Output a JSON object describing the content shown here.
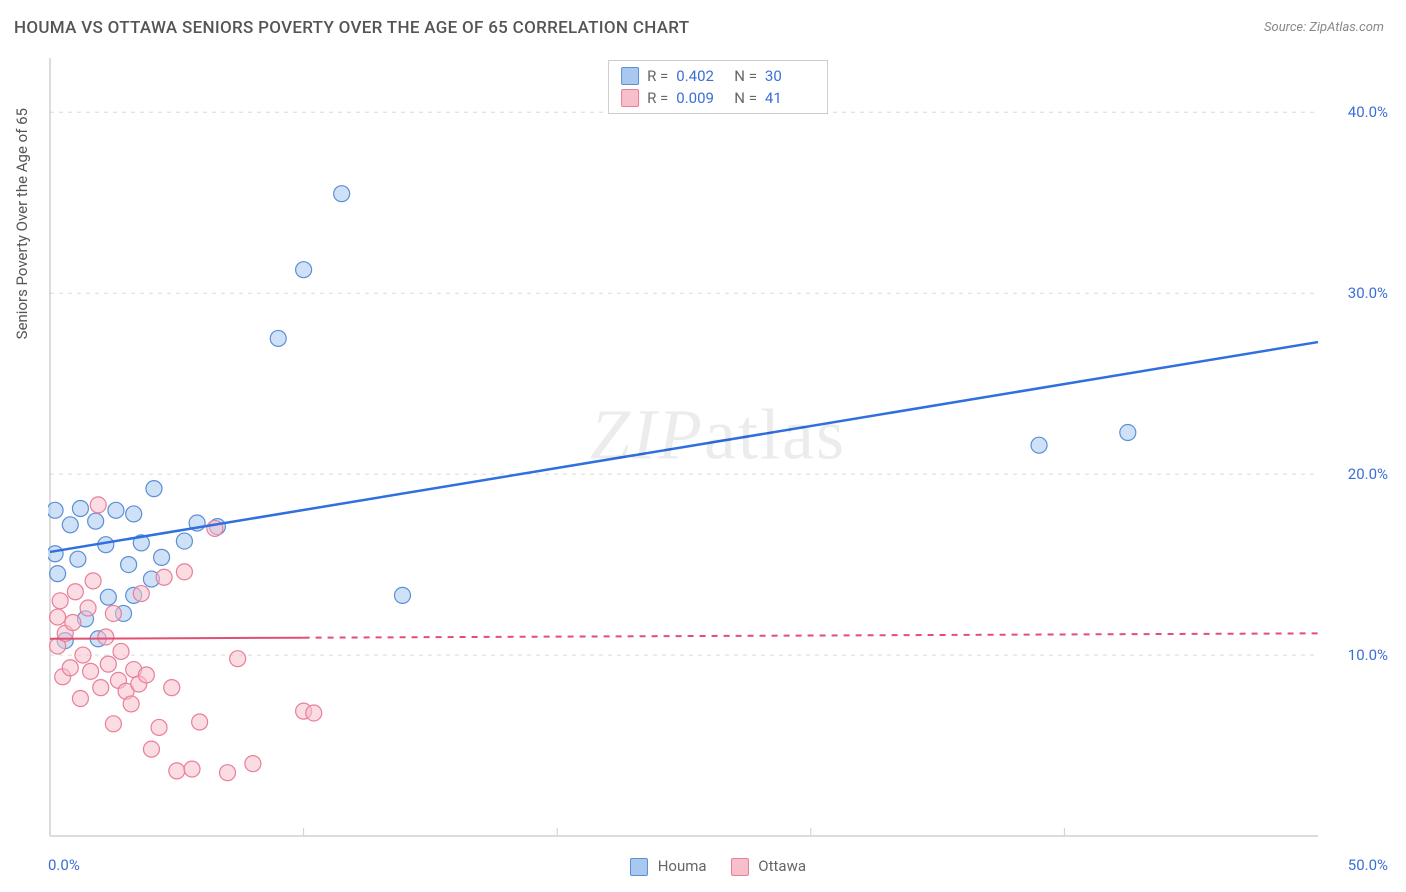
{
  "title": "HOUMA VS OTTAWA SENIORS POVERTY OVER THE AGE OF 65 CORRELATION CHART",
  "source": "Source: ZipAtlas.com",
  "ylabel": "Seniors Poverty Over the Age of 65",
  "watermark": "ZIPatlas",
  "chart": {
    "type": "scatter",
    "xlim": [
      0,
      50
    ],
    "ylim": [
      0,
      43
    ],
    "yticks": [
      10,
      20,
      30,
      40
    ],
    "ytick_labels": [
      "10.0%",
      "20.0%",
      "30.0%",
      "40.0%"
    ],
    "xticks_minor": [
      10,
      20,
      30,
      40
    ],
    "xtick_left": "0.0%",
    "xtick_right": "50.0%",
    "background_color": "#ffffff",
    "grid_color": "#dadada",
    "grid_style": "dashed",
    "axis_color": "#d0d0d0",
    "marker_radius": 8,
    "marker_stroke_width": 1.2,
    "marker_opacity": 0.55,
    "series": [
      {
        "name": "Houma",
        "color_fill": "#a8c8f0",
        "color_stroke": "#5b8fd6",
        "line_color": "#2f6fe0",
        "line_width": 2.5,
        "line_style": "solid",
        "R": "0.402",
        "N": "30",
        "trend": {
          "x1": 0,
          "y1": 15.7,
          "x2": 50,
          "y2": 27.3
        },
        "points": [
          [
            0.2,
            15.6
          ],
          [
            0.2,
            18.0
          ],
          [
            0.3,
            14.5
          ],
          [
            0.6,
            10.8
          ],
          [
            0.8,
            17.2
          ],
          [
            1.1,
            15.3
          ],
          [
            1.2,
            18.1
          ],
          [
            1.4,
            12.0
          ],
          [
            1.8,
            17.4
          ],
          [
            1.9,
            10.9
          ],
          [
            2.2,
            16.1
          ],
          [
            2.3,
            13.2
          ],
          [
            2.6,
            18.0
          ],
          [
            2.9,
            12.3
          ],
          [
            3.1,
            15.0
          ],
          [
            3.3,
            13.3
          ],
          [
            3.3,
            17.8
          ],
          [
            3.6,
            16.2
          ],
          [
            4.0,
            14.2
          ],
          [
            4.1,
            19.2
          ],
          [
            4.4,
            15.4
          ],
          [
            5.3,
            16.3
          ],
          [
            5.8,
            17.3
          ],
          [
            6.6,
            17.1
          ],
          [
            9.0,
            27.5
          ],
          [
            10.0,
            31.3
          ],
          [
            11.5,
            35.5
          ],
          [
            13.9,
            13.3
          ],
          [
            39.0,
            21.6
          ],
          [
            42.5,
            22.3
          ]
        ]
      },
      {
        "name": "Ottawa",
        "color_fill": "#f7bfca",
        "color_stroke": "#e87f99",
        "line_color": "#e24e74",
        "line_width": 2,
        "line_style": "dashed",
        "R": "0.009",
        "N": "41",
        "trend": {
          "x1": 0,
          "y1": 10.9,
          "x2": 50,
          "y2": 11.2
        },
        "solid_until_x": 10,
        "points": [
          [
            0.3,
            10.5
          ],
          [
            0.3,
            12.1
          ],
          [
            0.4,
            13.0
          ],
          [
            0.5,
            8.8
          ],
          [
            0.6,
            11.2
          ],
          [
            0.8,
            9.3
          ],
          [
            0.9,
            11.8
          ],
          [
            1.0,
            13.5
          ],
          [
            1.2,
            7.6
          ],
          [
            1.3,
            10.0
          ],
          [
            1.5,
            12.6
          ],
          [
            1.6,
            9.1
          ],
          [
            1.7,
            14.1
          ],
          [
            1.9,
            18.3
          ],
          [
            2.0,
            8.2
          ],
          [
            2.2,
            11.0
          ],
          [
            2.3,
            9.5
          ],
          [
            2.5,
            12.3
          ],
          [
            2.5,
            6.2
          ],
          [
            2.7,
            8.6
          ],
          [
            2.8,
            10.2
          ],
          [
            3.0,
            8.0
          ],
          [
            3.2,
            7.3
          ],
          [
            3.3,
            9.2
          ],
          [
            3.5,
            8.4
          ],
          [
            3.6,
            13.4
          ],
          [
            3.8,
            8.9
          ],
          [
            4.0,
            4.8
          ],
          [
            4.3,
            6.0
          ],
          [
            4.5,
            14.3
          ],
          [
            4.8,
            8.2
          ],
          [
            5.0,
            3.6
          ],
          [
            5.3,
            14.6
          ],
          [
            5.6,
            3.7
          ],
          [
            5.9,
            6.3
          ],
          [
            6.5,
            17.0
          ],
          [
            7.0,
            3.5
          ],
          [
            7.4,
            9.8
          ],
          [
            8.0,
            4.0
          ],
          [
            10.0,
            6.9
          ],
          [
            10.4,
            6.8
          ]
        ]
      }
    ],
    "legend": {
      "items": [
        {
          "label": "Houma",
          "fill": "#a8c8f0",
          "stroke": "#5b8fd6"
        },
        {
          "label": "Ottawa",
          "fill": "#f7bfca",
          "stroke": "#e87f99"
        }
      ]
    }
  }
}
